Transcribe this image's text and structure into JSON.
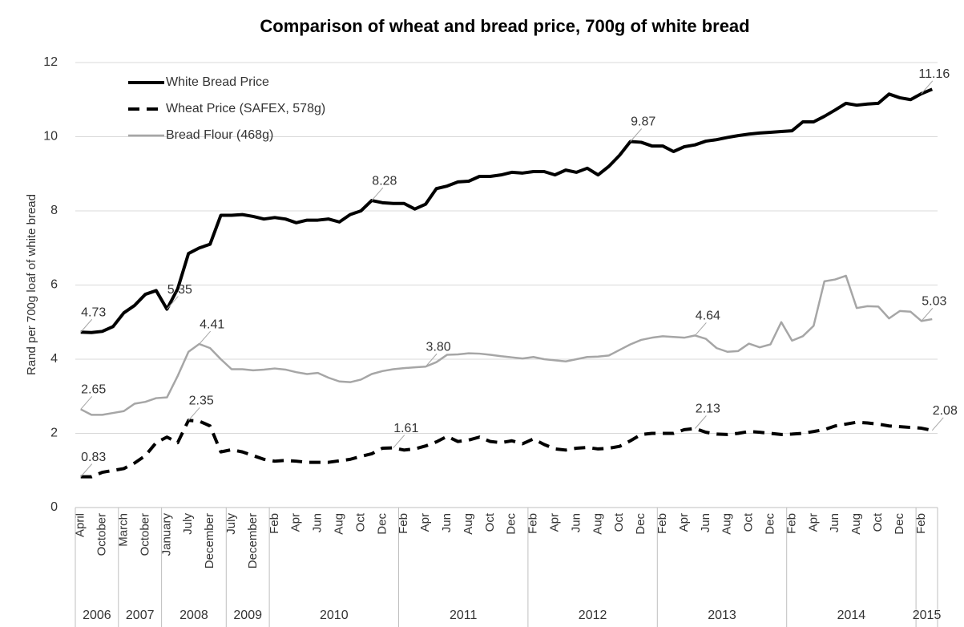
{
  "chart_data": {
    "type": "line",
    "title": "Comparison of wheat and bread price, 700g of white bread",
    "y_label": "Rand per 700g loaf of white bread",
    "categories": [
      "April",
      null,
      "October",
      null,
      "March",
      null,
      "October",
      null,
      "January",
      null,
      "July",
      null,
      "December",
      null,
      "July",
      null,
      "December",
      null,
      "Feb",
      null,
      "Apr",
      null,
      "Jun",
      null,
      "Aug",
      null,
      "Oct",
      null,
      "Dec",
      null,
      "Feb",
      null,
      "Apr",
      null,
      "Jun",
      null,
      "Aug",
      null,
      "Oct",
      null,
      "Dec",
      null,
      "Feb",
      null,
      "Apr",
      null,
      "Jun",
      null,
      "Aug",
      null,
      "Oct",
      null,
      "Dec",
      null,
      "Feb",
      null,
      "Apr",
      null,
      "Jun",
      null,
      "Aug",
      null,
      "Oct",
      null,
      "Dec",
      null,
      "Feb",
      null,
      "Apr",
      null,
      "Jun",
      null,
      "Aug",
      null,
      "Oct",
      null,
      "Dec",
      null,
      "Feb",
      null
    ],
    "groups": [
      {
        "label": "2006",
        "span": 4
      },
      {
        "label": "2007",
        "span": 4
      },
      {
        "label": "2008",
        "span": 6
      },
      {
        "label": "2009",
        "span": 4
      },
      {
        "label": "2010",
        "span": 12
      },
      {
        "label": "2011",
        "span": 12
      },
      {
        "label": "2012",
        "span": 12
      },
      {
        "label": "2013",
        "span": 12
      },
      {
        "label": "2014",
        "span": 12
      },
      {
        "label": "2015",
        "span": 2
      }
    ],
    "ylim": [
      0,
      12
    ],
    "yticks": [
      0,
      2,
      4,
      6,
      8,
      10,
      12
    ],
    "grid": true,
    "legend": "upper left",
    "series": [
      {
        "name": "White Bread Price",
        "color": "#000000",
        "line_style": "solid",
        "values": [
          4.73,
          4.72,
          4.75,
          4.88,
          5.25,
          5.45,
          5.75,
          5.85,
          5.35,
          5.9,
          6.85,
          7.0,
          7.1,
          7.88,
          7.88,
          7.9,
          7.85,
          7.78,
          7.82,
          7.78,
          7.68,
          7.75,
          7.75,
          7.78,
          7.7,
          7.9,
          8.0,
          8.28,
          8.22,
          8.2,
          8.2,
          8.05,
          8.18,
          8.6,
          8.67,
          8.78,
          8.8,
          8.93,
          8.93,
          8.97,
          9.04,
          9.02,
          9.06,
          9.06,
          8.97,
          9.1,
          9.04,
          9.15,
          8.97,
          9.2,
          9.5,
          9.87,
          9.85,
          9.75,
          9.75,
          9.6,
          9.73,
          9.78,
          9.88,
          9.92,
          9.98,
          10.03,
          10.07,
          10.1,
          10.12,
          10.14,
          10.16,
          10.4,
          10.4,
          10.55,
          10.72,
          10.9,
          10.85,
          10.88,
          10.9,
          11.15,
          11.05,
          11.0,
          11.16,
          11.28
        ],
        "value_labels": [
          "4.73",
          null,
          null,
          null,
          null,
          null,
          null,
          null,
          "5.35",
          null,
          null,
          null,
          null,
          null,
          null,
          null,
          null,
          null,
          null,
          null,
          null,
          null,
          null,
          null,
          null,
          null,
          null,
          "8.28",
          null,
          null,
          null,
          null,
          null,
          null,
          null,
          null,
          null,
          null,
          null,
          null,
          null,
          null,
          null,
          null,
          null,
          null,
          null,
          null,
          null,
          null,
          null,
          "9.87",
          null,
          null,
          null,
          null,
          null,
          null,
          null,
          null,
          null,
          null,
          null,
          null,
          null,
          null,
          null,
          null,
          null,
          null,
          null,
          null,
          null,
          null,
          null,
          null,
          null,
          null,
          "11.16",
          null
        ]
      },
      {
        "name": "Wheat Price (SAFEX, 578g)",
        "color": "#000000",
        "line_style": "dashed",
        "values": [
          0.83,
          0.83,
          0.95,
          1.0,
          1.05,
          1.2,
          1.4,
          1.75,
          1.9,
          1.75,
          2.35,
          2.33,
          2.2,
          1.5,
          1.56,
          1.5,
          1.4,
          1.3,
          1.25,
          1.27,
          1.25,
          1.22,
          1.22,
          1.22,
          1.26,
          1.3,
          1.38,
          1.45,
          1.6,
          1.61,
          1.55,
          1.58,
          1.66,
          1.77,
          1.92,
          1.78,
          1.82,
          1.9,
          1.78,
          1.75,
          1.8,
          1.72,
          1.85,
          1.7,
          1.58,
          1.55,
          1.6,
          1.62,
          1.58,
          1.6,
          1.65,
          1.8,
          1.97,
          2.0,
          2.0,
          2.0,
          2.1,
          2.13,
          2.03,
          1.98,
          1.97,
          2.0,
          2.05,
          2.03,
          2.0,
          1.97,
          1.98,
          2.0,
          2.05,
          2.1,
          2.2,
          2.25,
          2.3,
          2.28,
          2.25,
          2.2,
          2.18,
          2.16,
          2.14,
          2.08
        ],
        "value_labels": [
          "0.83",
          null,
          null,
          null,
          null,
          null,
          null,
          null,
          null,
          null,
          "2.35",
          null,
          null,
          null,
          null,
          null,
          null,
          null,
          null,
          null,
          null,
          null,
          null,
          null,
          null,
          null,
          null,
          null,
          null,
          "1.61",
          null,
          null,
          null,
          null,
          null,
          null,
          null,
          null,
          null,
          null,
          null,
          null,
          null,
          null,
          null,
          null,
          null,
          null,
          null,
          null,
          null,
          null,
          null,
          null,
          null,
          null,
          null,
          "2.13",
          null,
          null,
          null,
          null,
          null,
          null,
          null,
          null,
          null,
          null,
          null,
          null,
          null,
          null,
          null,
          null,
          null,
          null,
          null,
          null,
          null,
          "2.08"
        ]
      },
      {
        "name": "Bread Flour (468g)",
        "color": "#a6a6a6",
        "line_style": "solid",
        "values": [
          2.65,
          2.5,
          2.5,
          2.55,
          2.6,
          2.8,
          2.85,
          2.95,
          2.97,
          3.55,
          4.2,
          4.41,
          4.3,
          4.0,
          3.73,
          3.73,
          3.7,
          3.72,
          3.75,
          3.72,
          3.65,
          3.6,
          3.63,
          3.5,
          3.4,
          3.38,
          3.45,
          3.6,
          3.68,
          3.73,
          3.76,
          3.78,
          3.8,
          3.92,
          4.12,
          4.13,
          4.16,
          4.15,
          4.12,
          4.08,
          4.05,
          4.02,
          4.06,
          4.0,
          3.97,
          3.94,
          4.0,
          4.06,
          4.07,
          4.1,
          4.25,
          4.4,
          4.52,
          4.58,
          4.62,
          4.6,
          4.58,
          4.64,
          4.55,
          4.3,
          4.2,
          4.22,
          4.42,
          4.32,
          4.4,
          5.0,
          4.5,
          4.62,
          4.9,
          6.1,
          6.15,
          6.25,
          5.38,
          5.43,
          5.42,
          5.1,
          5.3,
          5.28,
          5.03,
          5.08
        ],
        "value_labels": [
          "2.65",
          null,
          null,
          null,
          null,
          null,
          null,
          null,
          null,
          null,
          null,
          "4.41",
          null,
          null,
          null,
          null,
          null,
          null,
          null,
          null,
          null,
          null,
          null,
          null,
          null,
          null,
          null,
          null,
          null,
          null,
          null,
          null,
          "3.80",
          null,
          null,
          null,
          null,
          null,
          null,
          null,
          null,
          null,
          null,
          null,
          null,
          null,
          null,
          null,
          null,
          null,
          null,
          null,
          null,
          null,
          null,
          null,
          null,
          "4.64",
          null,
          null,
          null,
          null,
          null,
          null,
          null,
          null,
          null,
          null,
          null,
          null,
          null,
          null,
          null,
          null,
          null,
          null,
          null,
          null,
          "5.03",
          null
        ]
      }
    ]
  }
}
